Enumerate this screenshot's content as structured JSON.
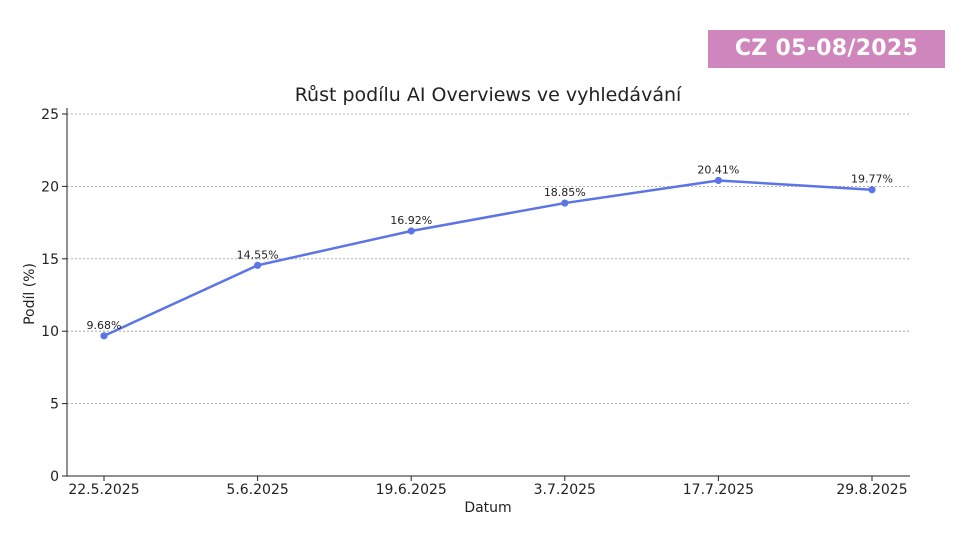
{
  "badge": {
    "text": "CZ 05-08/2025",
    "background": "#cf86bd"
  },
  "chart_data": {
    "type": "line",
    "title": "Růst podílu AI Overviews ve vyhledávání",
    "xlabel": "Datum",
    "ylabel": "Podíl (%)",
    "categories": [
      "22.5.2025",
      "5.6.2025",
      "19.6.2025",
      "3.7.2025",
      "17.7.2025",
      "29.8.2025"
    ],
    "series": [
      {
        "values": [
          9.68,
          14.55,
          16.92,
          18.85,
          20.41,
          19.77
        ],
        "data_labels": [
          "9.68%",
          "14.55%",
          "16.92%",
          "18.85%",
          "20.41%",
          "19.77%"
        ],
        "color": "#5b74e6"
      }
    ],
    "ylim": [
      0,
      25
    ],
    "yticks": [
      0,
      5,
      10,
      15,
      20,
      25
    ],
    "grid": "horizontal dashed",
    "legend": "none"
  }
}
